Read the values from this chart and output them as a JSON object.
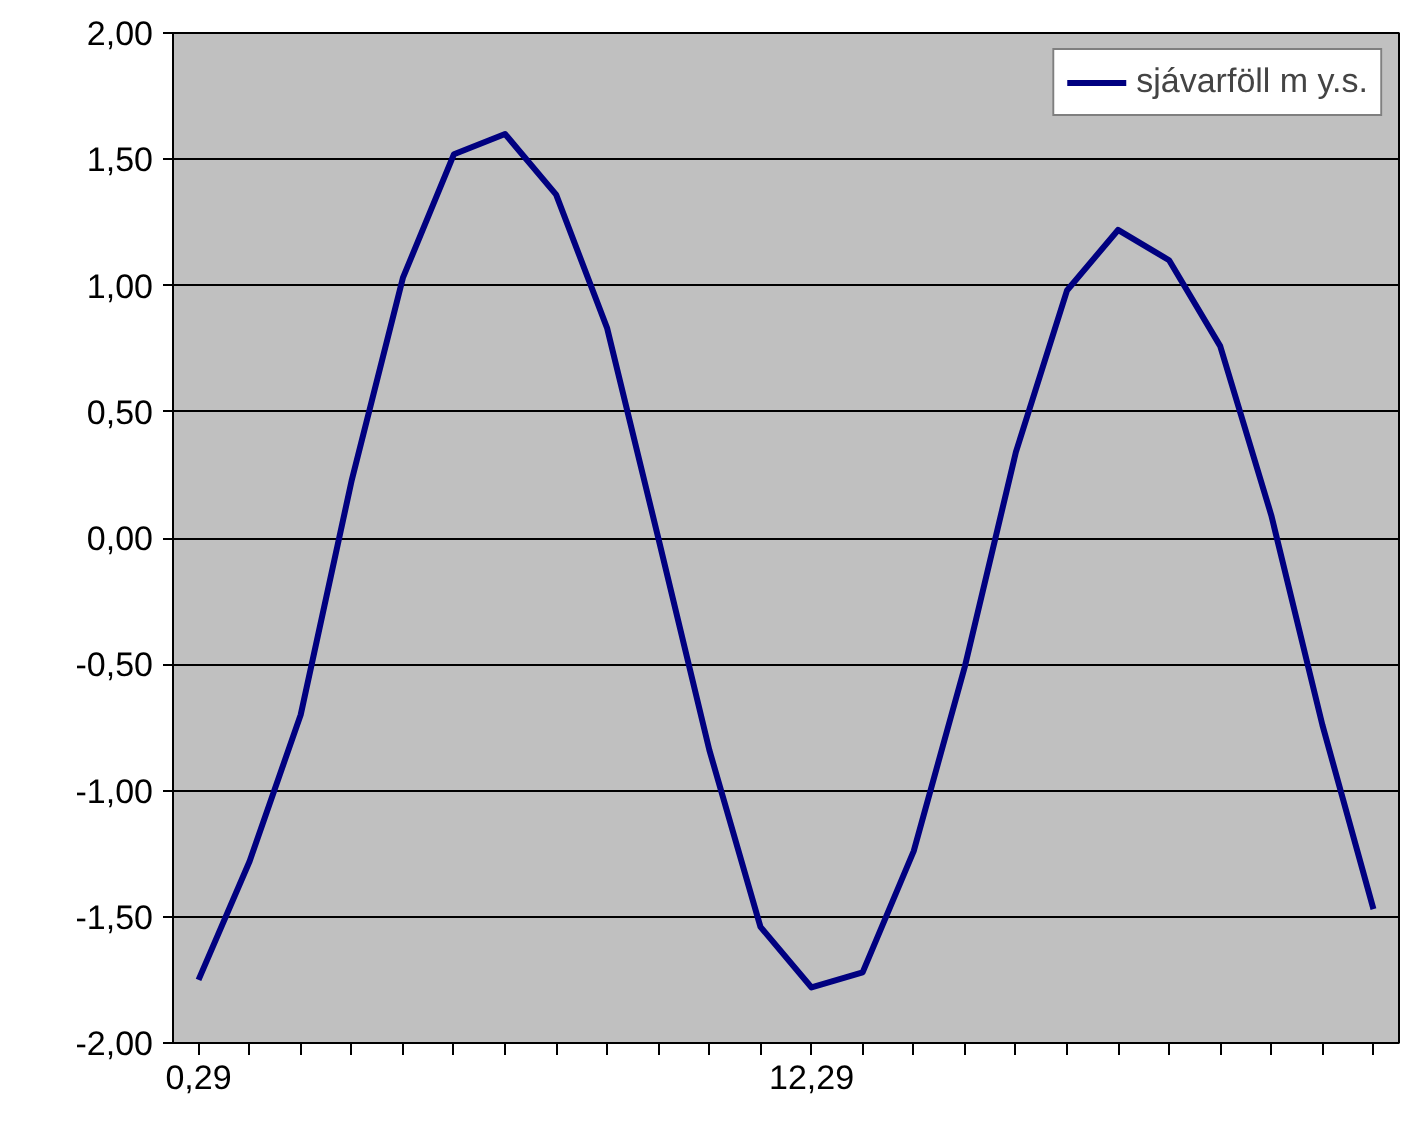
{
  "chart_data": {
    "type": "line",
    "categories": [
      "0,29",
      null,
      null,
      null,
      null,
      null,
      null,
      null,
      null,
      null,
      null,
      null,
      "12,29",
      null,
      null,
      null,
      null,
      null,
      null,
      null,
      null,
      null,
      null,
      null
    ],
    "series": [
      {
        "name": "sjávarföll m y.s.",
        "color": "#000080",
        "values": [
          -1.75,
          -1.28,
          -0.7,
          0.23,
          1.03,
          1.52,
          1.6,
          1.36,
          0.83,
          0.0,
          -0.84,
          -1.54,
          -1.78,
          -1.72,
          -1.24,
          -0.51,
          0.34,
          0.98,
          1.22,
          1.1,
          0.76,
          0.09,
          -0.74,
          -1.47
        ]
      }
    ],
    "ylim": [
      -2,
      2
    ],
    "yticks": [
      {
        "value": -2,
        "label": "-2,00"
      },
      {
        "value": -1.5,
        "label": "-1,50"
      },
      {
        "value": -1,
        "label": "-1,00"
      },
      {
        "value": -0.5,
        "label": "-0,50"
      },
      {
        "value": 0,
        "label": "0,00"
      },
      {
        "value": 0.5,
        "label": "0,50"
      },
      {
        "value": 1,
        "label": "1,00"
      },
      {
        "value": 1.5,
        "label": "1,50"
      },
      {
        "value": 2,
        "label": "2,00"
      }
    ],
    "grid": "y",
    "legend": "top right",
    "marker": "none",
    "line_style": "solid"
  }
}
